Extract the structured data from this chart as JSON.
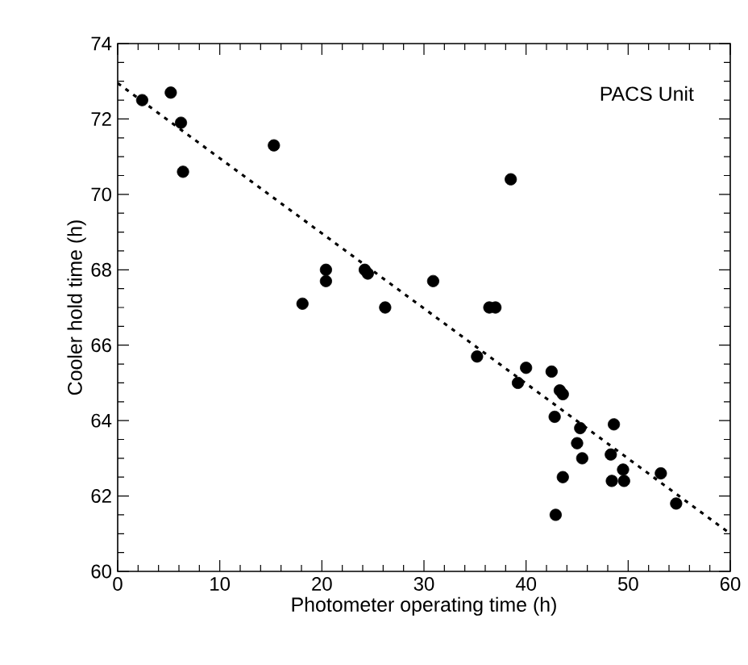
{
  "chart_data": {
    "type": "scatter",
    "xlabel": "Photometer operating time (h)",
    "ylabel": "Cooler hold time (h)",
    "annotations": [
      "PACS Unit"
    ],
    "xlim": [
      0,
      60
    ],
    "ylim": [
      60,
      74
    ],
    "xticks": [
      0,
      10,
      20,
      30,
      40,
      50,
      60
    ],
    "yticks": [
      60,
      62,
      64,
      66,
      68,
      70,
      72,
      74
    ],
    "marker": "circle",
    "grid": false,
    "series": [
      {
        "color": "#000000",
        "x": [
          2.4,
          5.2,
          6.2,
          6.4,
          15.3,
          18.1,
          20.4,
          20.4,
          24.2,
          24.5,
          26.2,
          30.9,
          36.4,
          37.0,
          35.2,
          38.5,
          40.0,
          39.2,
          42.5,
          43.3,
          43.6,
          42.8,
          45.3,
          48.6,
          45.0,
          48.3,
          45.5,
          43.6,
          49.5,
          48.4,
          49.6,
          53.2,
          54.7,
          42.9
        ],
        "values": [
          72.5,
          72.7,
          71.9,
          70.6,
          71.3,
          67.1,
          68.0,
          67.7,
          68.0,
          67.9,
          67.0,
          67.7,
          67.0,
          67.0,
          65.7,
          70.4,
          65.4,
          65.0,
          65.3,
          64.8,
          64.7,
          64.1,
          63.8,
          63.9,
          63.4,
          63.1,
          63.0,
          62.5,
          62.7,
          62.4,
          62.4,
          62.6,
          61.8,
          61.5
        ]
      },
      {
        "type": "line",
        "color": "#000000",
        "line_style": "dotted",
        "marker": "none",
        "x": [
          0,
          60
        ],
        "values": [
          72.95,
          61.0
        ]
      }
    ]
  }
}
